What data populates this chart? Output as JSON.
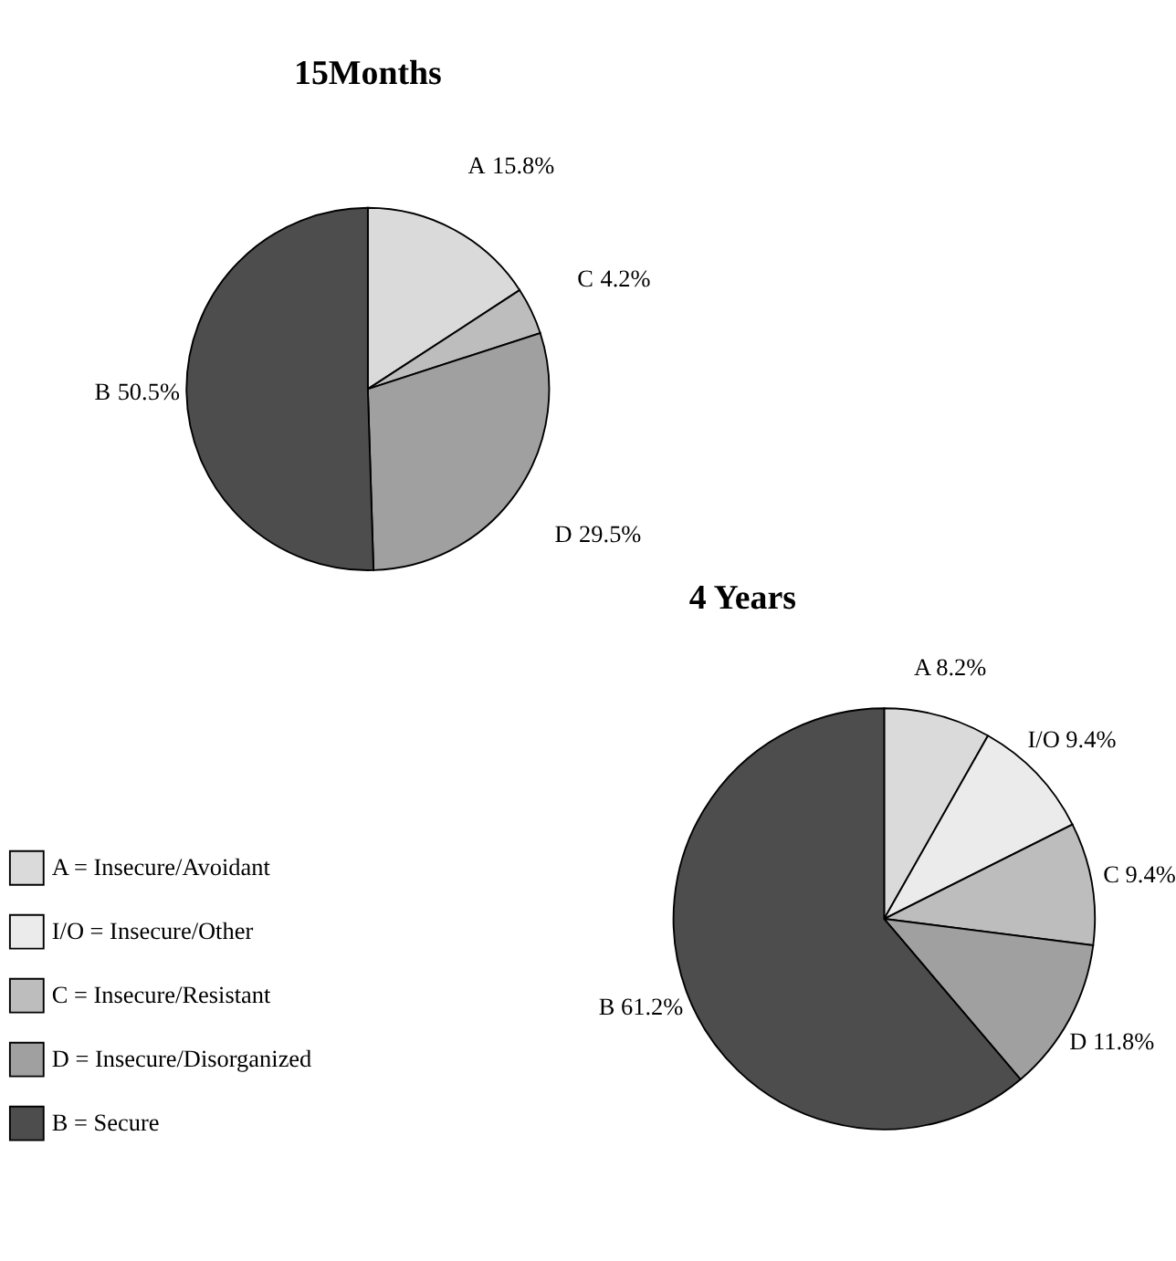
{
  "chart_data": [
    {
      "type": "pie",
      "title": "15Months",
      "categories": [
        "A",
        "C",
        "D",
        "B"
      ],
      "values": [
        15.8,
        4.2,
        29.5,
        50.5
      ],
      "colors": [
        "#dadada",
        "#bdbdbd",
        "#a0a0a0",
        "#4d4d4d"
      ],
      "value_labels": [
        "15.8%",
        "4.2%",
        "29.5%",
        "50.5%"
      ],
      "legend": false
    },
    {
      "type": "pie",
      "title": "4 Years",
      "categories": [
        "A = Insecure/Avoidant",
        "I/O = Insecure/Other",
        "C = Insecure/Resistant",
        "D = Insecure/Disorganized",
        "B = Secure"
      ],
      "values": [
        8.2,
        9.4,
        9.4,
        11.8,
        61.2
      ],
      "colors": [
        "#dadada",
        "#ebebeb",
        "#bdbdbd",
        "#a0a0a0",
        "#4d4d4d"
      ],
      "value_labels": [
        "A 8.2%",
        "I/O 9.4%",
        "C 9.4%",
        "D 11.8%",
        "B 61.2%"
      ],
      "legend": "bottom left"
    }
  ]
}
